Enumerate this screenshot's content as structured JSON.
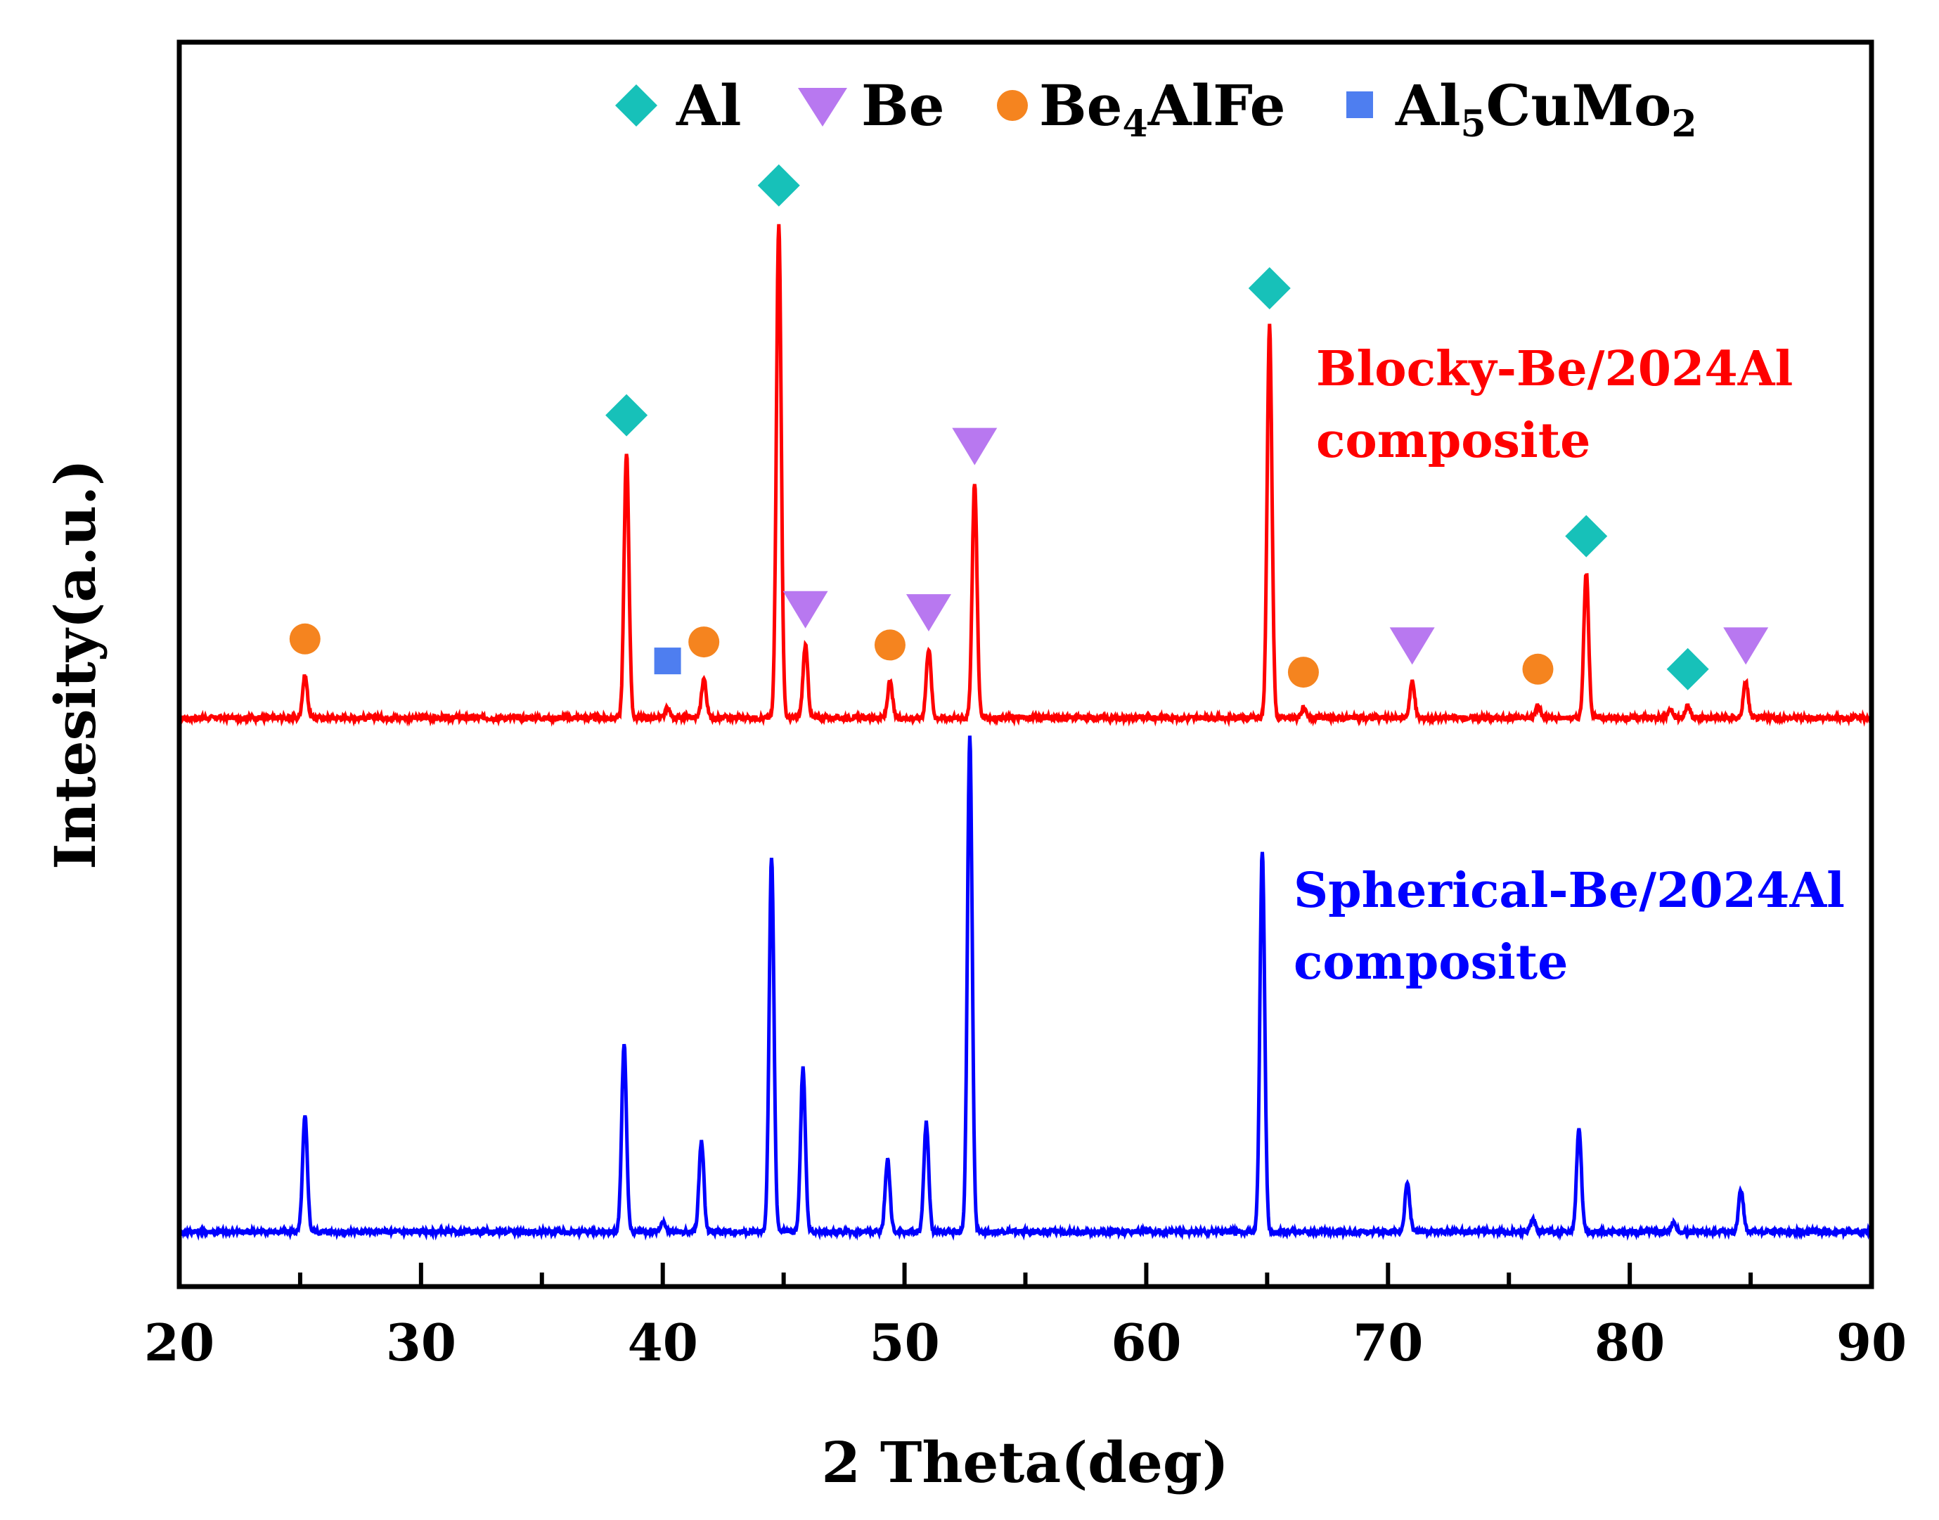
{
  "chart_data": {
    "type": "line",
    "xlabel": "2 Theta(deg)",
    "ylabel": "Intesity(a.u.)",
    "xlim": [
      20,
      90
    ],
    "xticks": [
      "20",
      "30",
      "40",
      "50",
      "60",
      "70",
      "80",
      "90"
    ],
    "legend": [
      {
        "name": "Al",
        "marker": "diamond",
        "color": "#17c1b9"
      },
      {
        "name": "Be",
        "marker": "triangle-down",
        "color": "#b878f0"
      },
      {
        "name": "Be4AlFe",
        "marker": "circle",
        "color": "#f5841f"
      },
      {
        "name": "Al5CuMo2",
        "marker": "square",
        "color": "#4e7ef0"
      }
    ],
    "series": [
      {
        "name": "Blocky-Be/2024Al composite",
        "label_line1": "Blocky-Be/2024Al",
        "label_line2": "composite",
        "color": "#ff0000",
        "baseline": 8.5,
        "peaks": [
          {
            "x": 25.2,
            "h": 0.7,
            "phase": "Be4AlFe"
          },
          {
            "x": 38.5,
            "h": 4.4,
            "phase": "Al"
          },
          {
            "x": 40.2,
            "h": 0.15,
            "phase": "Al5CuMo2"
          },
          {
            "x": 41.7,
            "h": 0.65,
            "phase": "Be4AlFe"
          },
          {
            "x": 44.8,
            "h": 8.2,
            "phase": "Al"
          },
          {
            "x": 45.9,
            "h": 1.2,
            "phase": "Be"
          },
          {
            "x": 49.4,
            "h": 0.6,
            "phase": "Be4AlFe"
          },
          {
            "x": 51.0,
            "h": 1.15,
            "phase": "Be"
          },
          {
            "x": 52.9,
            "h": 3.9,
            "phase": "Be"
          },
          {
            "x": 65.1,
            "h": 6.5,
            "phase": "Al"
          },
          {
            "x": 66.5,
            "h": 0.15,
            "phase": "Be4AlFe"
          },
          {
            "x": 71.0,
            "h": 0.6,
            "phase": "Be"
          },
          {
            "x": 76.2,
            "h": 0.2,
            "phase": "Be4AlFe"
          },
          {
            "x": 78.2,
            "h": 2.4,
            "phase": "Al"
          },
          {
            "x": 81.7,
            "h": 0.15,
            "phase": null
          },
          {
            "x": 82.4,
            "h": 0.2,
            "phase": "Al"
          },
          {
            "x": 84.8,
            "h": 0.6,
            "phase": "Be"
          }
        ]
      },
      {
        "name": "Spherical-Be/2024Al composite",
        "label_line1": "Spherical-Be/2024Al",
        "label_line2": "composite",
        "color": "#0000ff",
        "baseline": 0,
        "peaks": [
          {
            "x": 25.2,
            "h": 1.9
          },
          {
            "x": 38.4,
            "h": 3.1
          },
          {
            "x": 40.0,
            "h": 0.15
          },
          {
            "x": 41.6,
            "h": 1.5
          },
          {
            "x": 44.5,
            "h": 6.2
          },
          {
            "x": 45.8,
            "h": 2.7
          },
          {
            "x": 49.3,
            "h": 1.2
          },
          {
            "x": 50.9,
            "h": 1.8
          },
          {
            "x": 52.7,
            "h": 8.2
          },
          {
            "x": 64.8,
            "h": 6.3
          },
          {
            "x": 70.8,
            "h": 0.8
          },
          {
            "x": 76.0,
            "h": 0.2
          },
          {
            "x": 77.9,
            "h": 1.7
          },
          {
            "x": 81.8,
            "h": 0.15
          },
          {
            "x": 84.6,
            "h": 0.7
          }
        ]
      }
    ]
  }
}
